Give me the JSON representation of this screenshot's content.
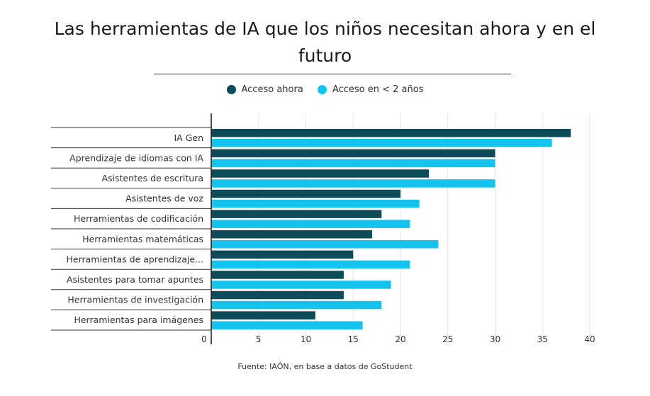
{
  "title": "Las herramientas de IA que los niños necesitan ahora y en el futuro",
  "source": "Fuente: IAÓN, en base a datos de GoStudent",
  "colors": {
    "now": "#0d4b5b",
    "future": "#14c4ef"
  },
  "chart_data": {
    "type": "bar",
    "orientation": "horizontal",
    "title": "Las herramientas de IA que los niños necesitan ahora y en el futuro",
    "categories": [
      "IA Gen",
      "Aprendizaje de idiomas con IA",
      "Asistentes de escritura",
      "Asistentes de voz",
      "Herramientas de codificación",
      "Herramientas matemáticas",
      "Herramientas de aprendizaje...",
      "Asistentes para tomar apuntes",
      "Herramientas de investigación",
      "Herramientas para imágenes"
    ],
    "series": [
      {
        "name": "Acceso ahora",
        "values": [
          38,
          30,
          23,
          20,
          18,
          17,
          15,
          14,
          14,
          11
        ]
      },
      {
        "name": "Acceso en < 2 años",
        "values": [
          36,
          30,
          30,
          22,
          21,
          24,
          21,
          19,
          18,
          16
        ]
      }
    ],
    "xlim": [
      0,
      40
    ],
    "xticks": [
      0,
      5,
      10,
      15,
      20,
      25,
      30,
      35,
      40
    ],
    "grid": true,
    "legend_position": "top"
  }
}
